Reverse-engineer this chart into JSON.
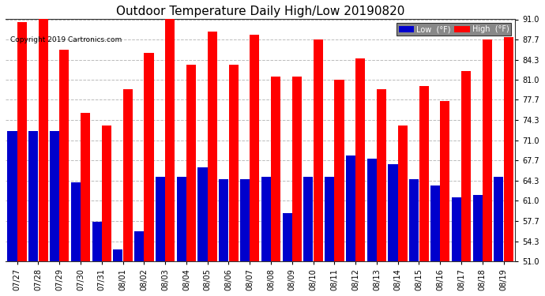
{
  "title": "Outdoor Temperature Daily High/Low 20190820",
  "copyright": "Copyright 2019 Cartronics.com",
  "categories": [
    "07/27",
    "07/28",
    "07/29",
    "07/30",
    "07/31",
    "08/01",
    "08/02",
    "08/03",
    "08/04",
    "08/05",
    "08/06",
    "08/07",
    "08/08",
    "08/09",
    "08/10",
    "08/11",
    "08/12",
    "08/13",
    "08/14",
    "08/15",
    "08/16",
    "08/17",
    "08/18",
    "08/19"
  ],
  "high": [
    90.5,
    91.5,
    86.0,
    75.5,
    73.5,
    79.5,
    85.5,
    91.5,
    83.5,
    89.0,
    83.5,
    88.5,
    81.5,
    81.5,
    87.7,
    81.0,
    84.5,
    79.5,
    73.5,
    80.0,
    77.5,
    82.5,
    87.7,
    88.0
  ],
  "low": [
    72.5,
    72.5,
    72.5,
    64.0,
    57.5,
    53.0,
    56.0,
    65.0,
    65.0,
    66.5,
    64.5,
    64.5,
    65.0,
    59.0,
    65.0,
    65.0,
    68.5,
    68.0,
    67.0,
    64.5,
    63.5,
    61.5,
    62.0,
    65.0
  ],
  "ylim": [
    51.0,
    91.0
  ],
  "yticks": [
    51.0,
    54.3,
    57.7,
    61.0,
    64.3,
    67.7,
    71.0,
    74.3,
    77.7,
    81.0,
    84.3,
    87.7,
    91.0
  ],
  "bar_color_high": "#ff0000",
  "bar_color_low": "#0000cc",
  "bg_color": "#ffffff",
  "grid_color": "#bbbbbb",
  "title_fontsize": 11,
  "copyright_fontsize": 6.5,
  "legend_low_color": "#0000cc",
  "legend_high_color": "#ff0000",
  "legend_text_color": "#ffffff"
}
